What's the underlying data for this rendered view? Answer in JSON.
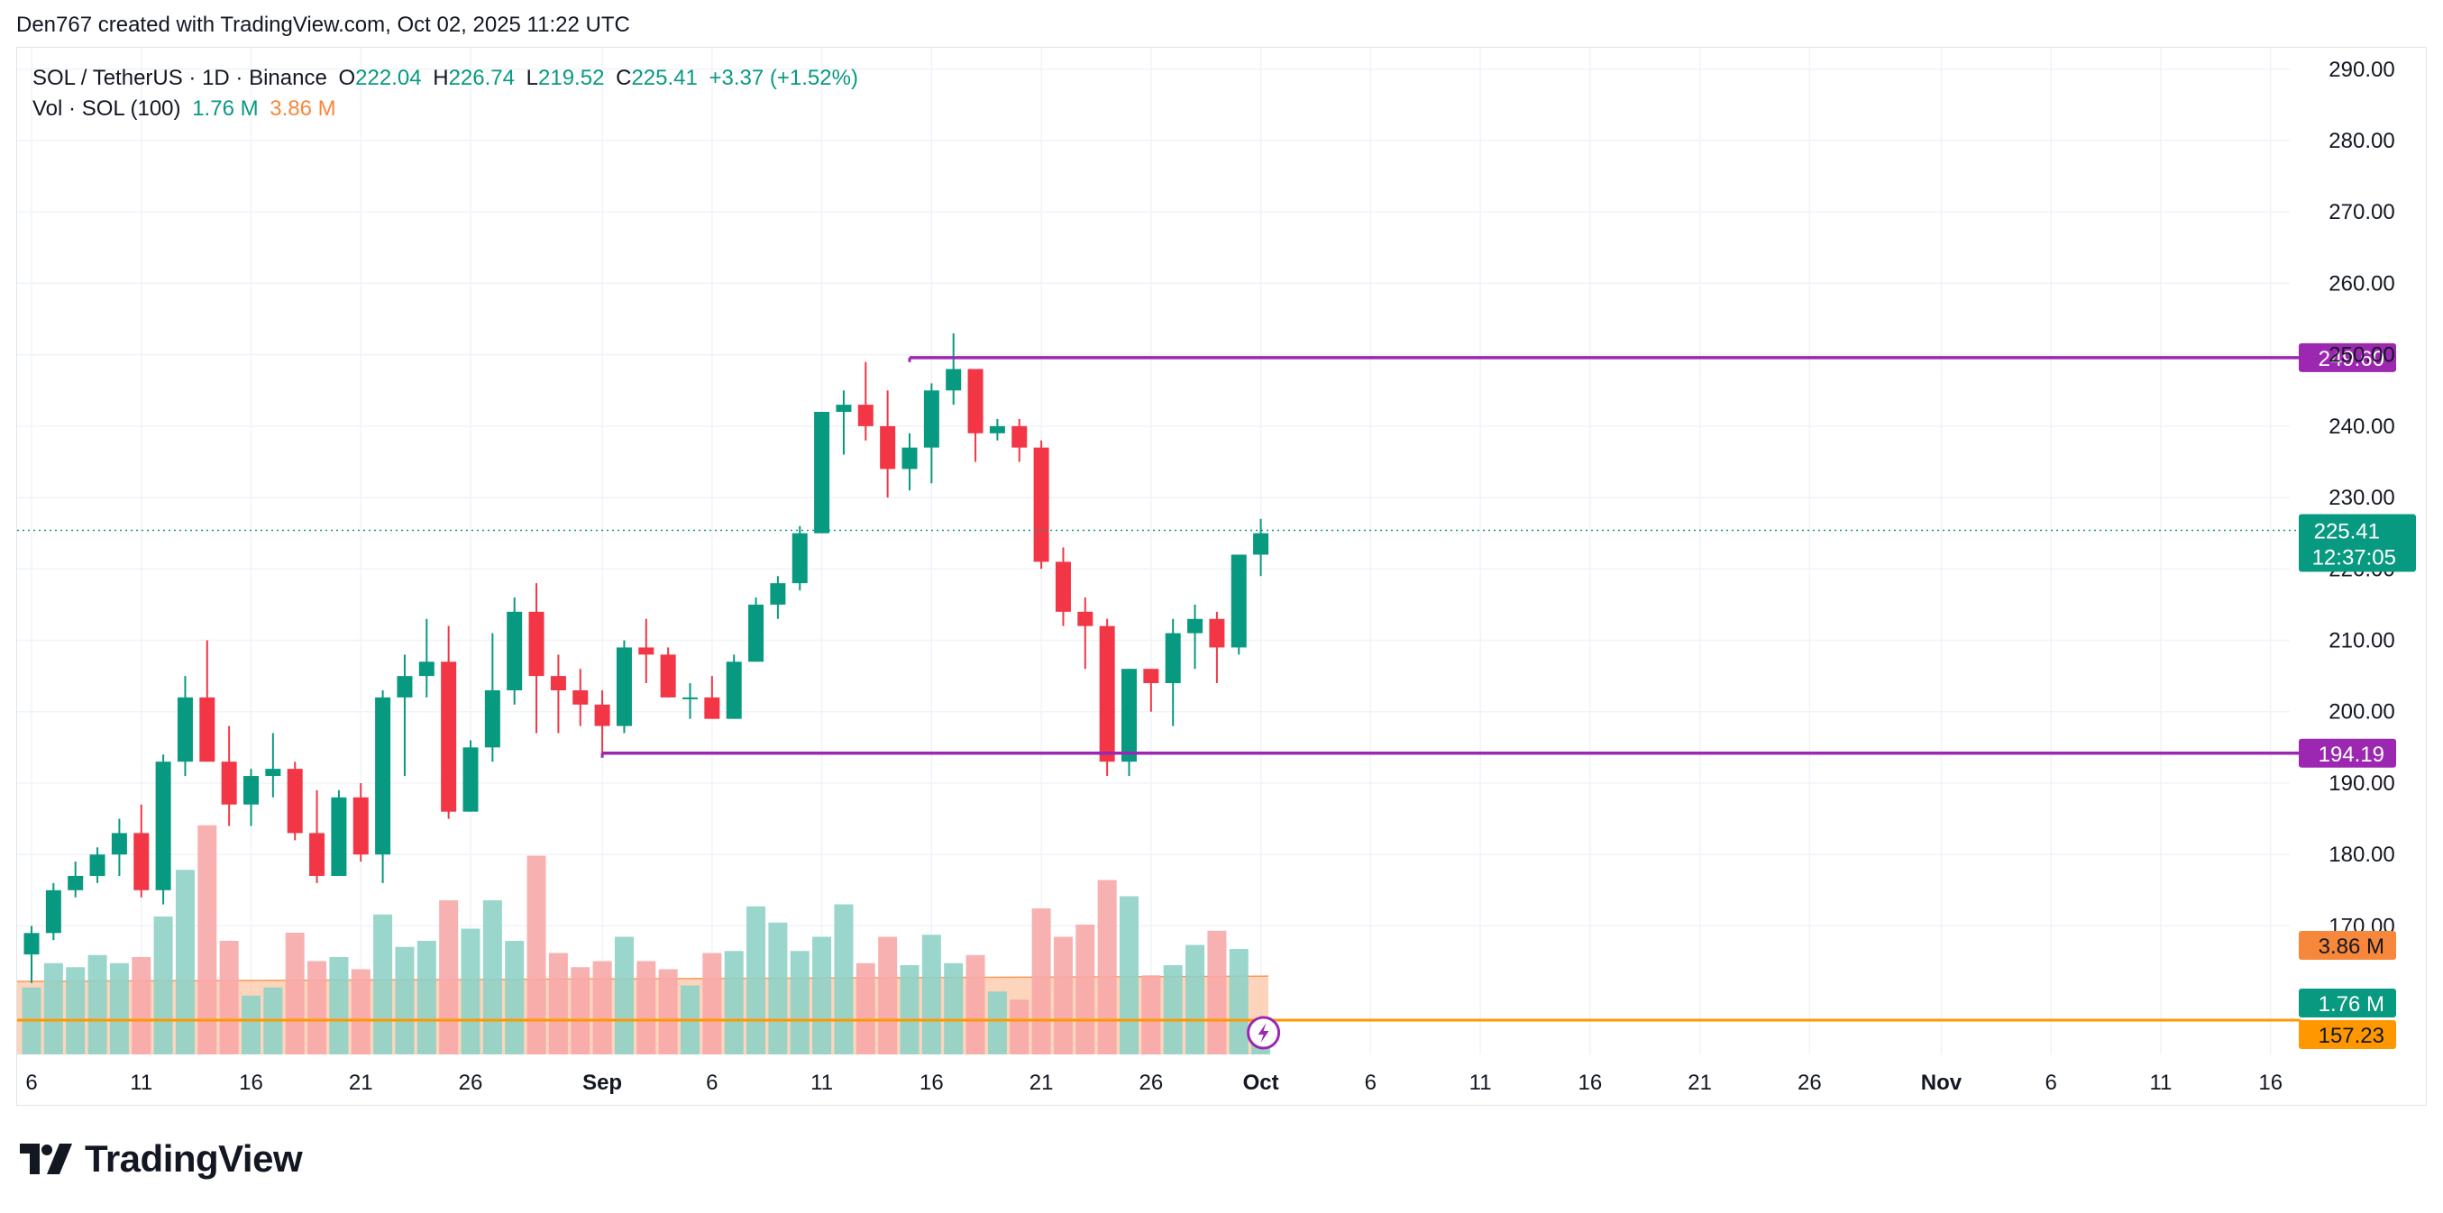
{
  "credit": "Den767 created with TradingView.com, Oct 02, 2025 11:22 UTC",
  "brand": "TradingView",
  "legend": {
    "symbol": "SOL / TetherUS · 1D · Binance",
    "o_label": "O",
    "o": "222.04",
    "h_label": "H",
    "h": "226.74",
    "l_label": "L",
    "l": "219.52",
    "c_label": "C",
    "c": "225.41",
    "change": "+3.37 (+1.52%)",
    "vol_label": "Vol · SOL (100)",
    "vol": "1.76 M",
    "vol_ma": "3.86 M"
  },
  "colors": {
    "up": "#089981",
    "down": "#f23645",
    "vol_up": "#8fd1c6",
    "vol_down": "#f7a9a9",
    "level": "#9c27b0",
    "orange": "#ff9800",
    "vol_ma_fill": "#fcc7a5"
  },
  "chart_data": {
    "type": "candlestick",
    "title": "SOL / TetherUS · 1D · Binance",
    "ylim": [
      152,
      293
    ],
    "price_ticks": [
      "290.00",
      "280.00",
      "270.00",
      "260.00",
      "250.00",
      "240.00",
      "230.00",
      "220.00",
      "210.00",
      "200.00",
      "190.00",
      "180.00",
      "170.00"
    ],
    "x_ticks": [
      {
        "label": "6",
        "idx": 0
      },
      {
        "label": "11",
        "idx": 5
      },
      {
        "label": "16",
        "idx": 10
      },
      {
        "label": "21",
        "idx": 15
      },
      {
        "label": "26",
        "idx": 20
      },
      {
        "label": "Sep",
        "idx": 26,
        "bold": true
      },
      {
        "label": "6",
        "idx": 31
      },
      {
        "label": "11",
        "idx": 36
      },
      {
        "label": "16",
        "idx": 41
      },
      {
        "label": "21",
        "idx": 46
      },
      {
        "label": "26",
        "idx": 51
      },
      {
        "label": "Oct",
        "idx": 56,
        "bold": true
      },
      {
        "label": "6",
        "idx": 61
      },
      {
        "label": "11",
        "idx": 66
      },
      {
        "label": "16",
        "idx": 71
      },
      {
        "label": "21",
        "idx": 76
      },
      {
        "label": "26",
        "idx": 81
      },
      {
        "label": "Nov",
        "idx": 87,
        "bold": true
      },
      {
        "label": "6",
        "idx": 92
      },
      {
        "label": "11",
        "idx": 97
      },
      {
        "label": "16",
        "idx": 102
      }
    ],
    "start_date": "Aug 6, 2025",
    "candles": [
      [
        166,
        170,
        162,
        169,
        3.3
      ],
      [
        169,
        176,
        168,
        175,
        4.5
      ],
      [
        175,
        179,
        174,
        177,
        4.3
      ],
      [
        177,
        181,
        176,
        180,
        4.9
      ],
      [
        180,
        185,
        177,
        183,
        4.5
      ],
      [
        183,
        187,
        174,
        175,
        4.8
      ],
      [
        175,
        194,
        173,
        193,
        6.8
      ],
      [
        193,
        205,
        191,
        202,
        9.1
      ],
      [
        202,
        210,
        193,
        193,
        11.3
      ],
      [
        193,
        198,
        184,
        187,
        5.6
      ],
      [
        187,
        192,
        184,
        191,
        2.9
      ],
      [
        191,
        197,
        188,
        192,
        3.3
      ],
      [
        192,
        193,
        182,
        183,
        6.0
      ],
      [
        183,
        189,
        176,
        177,
        4.6
      ],
      [
        177,
        189,
        177,
        188,
        4.8
      ],
      [
        188,
        190,
        179,
        180,
        4.2
      ],
      [
        180,
        203,
        176,
        202,
        6.9
      ],
      [
        202,
        208,
        191,
        205,
        5.3
      ],
      [
        205,
        213,
        202,
        207,
        5.6
      ],
      [
        207,
        212,
        185,
        186,
        7.6
      ],
      [
        186,
        196,
        186,
        195,
        6.2
      ],
      [
        195,
        211,
        193,
        203,
        7.6
      ],
      [
        203,
        216,
        201,
        214,
        5.6
      ],
      [
        214,
        218,
        197,
        205,
        9.8
      ],
      [
        205,
        208,
        197,
        203,
        5.0
      ],
      [
        203,
        206,
        198,
        201,
        4.3
      ],
      [
        201,
        203,
        194,
        198,
        4.6
      ],
      [
        198,
        210,
        197,
        209,
        5.8
      ],
      [
        209,
        213,
        204,
        208,
        4.6
      ],
      [
        208,
        209,
        202,
        202,
        4.2
      ],
      [
        202,
        204,
        199,
        202,
        3.4
      ],
      [
        202,
        205,
        199,
        199,
        5.0
      ],
      [
        199,
        208,
        199,
        207,
        5.1
      ],
      [
        207,
        216,
        207,
        215,
        7.3
      ],
      [
        215,
        219,
        213,
        218,
        6.5
      ],
      [
        218,
        226,
        217,
        225,
        5.1
      ],
      [
        225,
        242,
        225,
        242,
        5.8
      ],
      [
        242,
        245,
        236,
        243,
        7.4
      ],
      [
        243,
        249,
        238,
        240,
        4.5
      ],
      [
        240,
        245,
        230,
        234,
        5.8
      ],
      [
        234,
        239,
        231,
        237,
        4.4
      ],
      [
        237,
        246,
        232,
        245,
        5.9
      ],
      [
        245,
        253,
        243,
        248,
        4.5
      ],
      [
        248,
        248,
        235,
        239,
        4.9
      ],
      [
        239,
        241,
        238,
        240,
        3.1
      ],
      [
        240,
        241,
        235,
        237,
        2.7
      ],
      [
        237,
        238,
        220,
        221,
        7.2
      ],
      [
        221,
        223,
        212,
        214,
        5.8
      ],
      [
        214,
        216,
        206,
        212,
        6.4
      ],
      [
        212,
        213,
        191,
        193,
        8.6
      ],
      [
        193,
        206,
        191,
        206,
        7.8
      ],
      [
        206,
        206,
        200,
        204,
        3.9
      ],
      [
        204,
        213,
        198,
        211,
        4.4
      ],
      [
        211,
        215,
        206,
        213,
        5.4
      ],
      [
        213,
        214,
        204,
        209,
        6.1
      ],
      [
        209,
        222,
        208,
        222,
        5.2
      ],
      [
        222,
        227,
        219,
        225,
        1.76
      ]
    ],
    "vol_ma_start": 3.6,
    "vol_ma_end": 3.86,
    "levels": [
      {
        "price": 249.6,
        "label": "249.60",
        "from_idx": 40
      },
      {
        "price": 194.19,
        "label": "194.19",
        "from_idx": 26
      }
    ],
    "ref_line": {
      "label": "157.23"
    },
    "last_price": {
      "label": "225.41",
      "countdown": "12:37:05",
      "price": 225.41
    },
    "vol_badge": "1.76 M",
    "vol_ma_badge": "3.86 M"
  }
}
